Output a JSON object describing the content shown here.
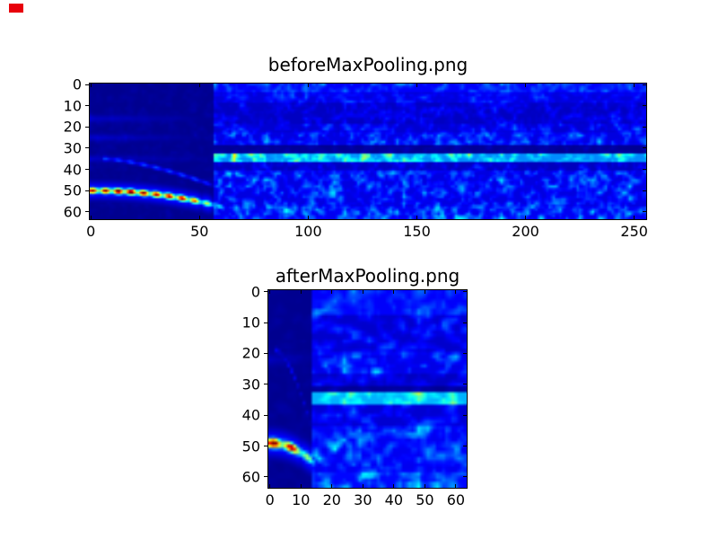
{
  "window": {
    "background_color": "#ffffff",
    "marker_color": "#e8000b"
  },
  "chart_data": {
    "type": "heatmap",
    "colormap": "jet",
    "grid": false,
    "legend": false,
    "plots": [
      {
        "title": "beforeMaxPooling.png",
        "cols": 256,
        "rows": 64,
        "x_ticks": [
          0,
          50,
          100,
          150,
          200,
          250
        ],
        "y_ticks": [
          0,
          10,
          20,
          30,
          40,
          50,
          60
        ],
        "x_range": [
          -0.5,
          255.5
        ],
        "y_range": [
          63.5,
          -0.5
        ],
        "description": "Spectrogram-like feature map: dark navy quiet block on left (cols 0-57) crossed by a bright red/yellow arc near row 50 and a faint cyan arc; noisy blue speckle field on the right with a dark horizontal band near row 31 and a bright cyan speckle band near rows 33-36.",
        "seed": 7,
        "quiet": {
          "col_end": 57,
          "base": 0.015,
          "amp": 0.03,
          "streak_rows": [
            16,
            25,
            35
          ],
          "streak_amp": 0.05
        },
        "bands": [
          {
            "r0": 0,
            "r1": 4,
            "base": 0.12,
            "amp": 0.2
          },
          {
            "r0": 4,
            "r1": 9,
            "base": 0.09,
            "amp": 0.16
          },
          {
            "r0": 9,
            "r1": 19,
            "base": 0.065,
            "amp": 0.14
          },
          {
            "r0": 19,
            "r1": 23,
            "base": 0.08,
            "amp": 0.2
          },
          {
            "r0": 23,
            "r1": 29,
            "base": 0.095,
            "amp": 0.28
          },
          {
            "r0": 29,
            "r1": 33,
            "base": 0.02,
            "amp": 0.06
          },
          {
            "r0": 33,
            "r1": 37,
            "base": 0.26,
            "amp": 0.42
          },
          {
            "r0": 37,
            "r1": 41,
            "base": 0.06,
            "amp": 0.16
          },
          {
            "r0": 41,
            "r1": 58,
            "base": 0.095,
            "amp": 0.3
          },
          {
            "r0": 58,
            "r1": 64,
            "base": 0.11,
            "amp": 0.38
          }
        ],
        "arcs": [
          {
            "c0": 0,
            "c1": 68,
            "rA": 50,
            "rB": 60,
            "pow": 2.1,
            "w": 1.5,
            "peak": 0.98,
            "fade_from": 44,
            "hot": 17,
            "hot_w": 7
          },
          {
            "c0": 6,
            "c1": 60,
            "rA": 35,
            "rB": 49,
            "pow": 1.5,
            "w": 1.1,
            "peak": 0.2,
            "fade_from": 52
          }
        ]
      },
      {
        "title": "afterMaxPooling.png",
        "cols": 64,
        "rows": 64,
        "x_ticks": [
          0,
          10,
          20,
          30,
          40,
          50,
          60
        ],
        "y_ticks": [
          0,
          10,
          20,
          30,
          40,
          50,
          60
        ],
        "x_range": [
          -0.5,
          63.5
        ],
        "y_range": [
          63.5,
          -0.5
        ],
        "description": "Max-pooled version of the same map (64x64): dark navy quiet block on left (cols 0-13) with bright red/orange arc blob near row 50; brighter noisy blue speckle field on the right with dark band near row 32 and bright cyan band rows 33-36.",
        "seed": 13,
        "quiet": {
          "col_end": 14,
          "base": 0.015,
          "amp": 0.03,
          "streak_rows": [
            22
          ],
          "streak_amp": 0.045
        },
        "bands": [
          {
            "r0": 0,
            "r1": 8,
            "base": 0.12,
            "amp": 0.22
          },
          {
            "r0": 8,
            "r1": 20,
            "base": 0.075,
            "amp": 0.18
          },
          {
            "r0": 20,
            "r1": 27,
            "base": 0.1,
            "amp": 0.3
          },
          {
            "r0": 27,
            "r1": 31,
            "base": 0.065,
            "amp": 0.16
          },
          {
            "r0": 31,
            "r1": 33,
            "base": 0.02,
            "amp": 0.07
          },
          {
            "r0": 33,
            "r1": 37,
            "base": 0.3,
            "amp": 0.45
          },
          {
            "r0": 37,
            "r1": 44,
            "base": 0.08,
            "amp": 0.22
          },
          {
            "r0": 44,
            "r1": 59,
            "base": 0.11,
            "amp": 0.34
          },
          {
            "r0": 59,
            "r1": 64,
            "base": 0.13,
            "amp": 0.42
          }
        ],
        "arcs": [
          {
            "c0": 0,
            "c1": 17,
            "rA": 49,
            "rB": 58,
            "pow": 2.0,
            "w": 1.6,
            "peak": 0.98,
            "fade_from": 9,
            "hot": 3,
            "hot_w": 3
          },
          {
            "c0": 2,
            "c1": 14,
            "rA": 19,
            "rB": 46,
            "pow": 1.6,
            "w": 1.0,
            "peak": 0.13,
            "fade_from": 11
          }
        ]
      }
    ]
  }
}
